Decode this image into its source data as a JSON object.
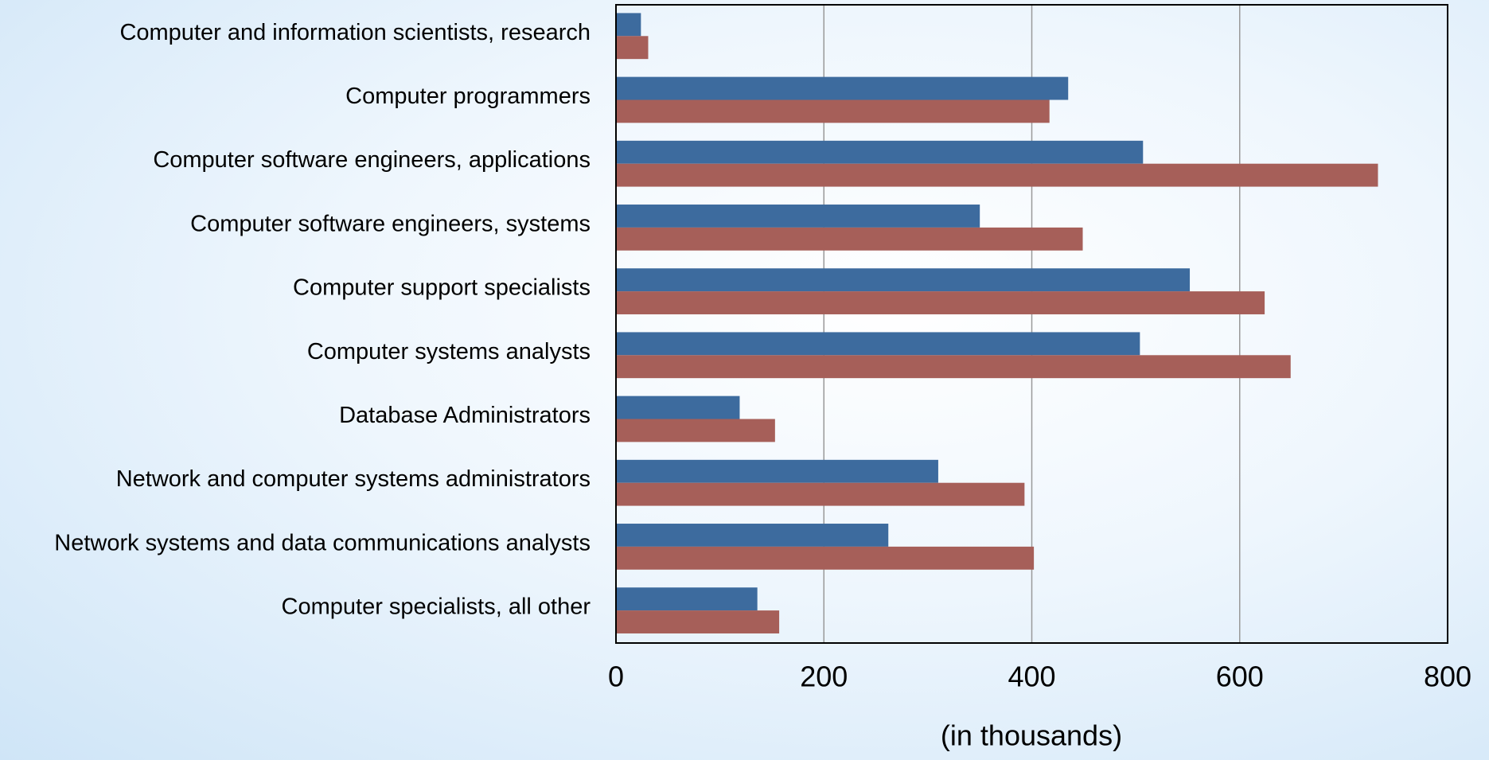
{
  "chart_data": {
    "type": "hbar",
    "x_label": "(in thousands)",
    "categories": [
      "Computer and information scientists, research",
      "Computer programmers",
      "Computer software engineers, applications",
      "Computer software engineers, systems",
      "Computer support specialists",
      "Computer systems analysts",
      "Database Administrators",
      "Network and computer systems administrators",
      "Network systems and data communications analysts",
      "Computer specialists, all other"
    ],
    "series": [
      {
        "color": "#3d6b9e",
        "values": [
          24,
          435,
          507,
          350,
          552,
          504,
          119,
          310,
          262,
          136
        ]
      },
      {
        "color": "#a65f59",
        "values": [
          31,
          417,
          733,
          449,
          624,
          649,
          153,
          393,
          402,
          157
        ]
      }
    ],
    "xlim": [
      0,
      800
    ],
    "xticks": [
      0,
      200,
      400,
      600,
      800
    ],
    "grid": true
  }
}
